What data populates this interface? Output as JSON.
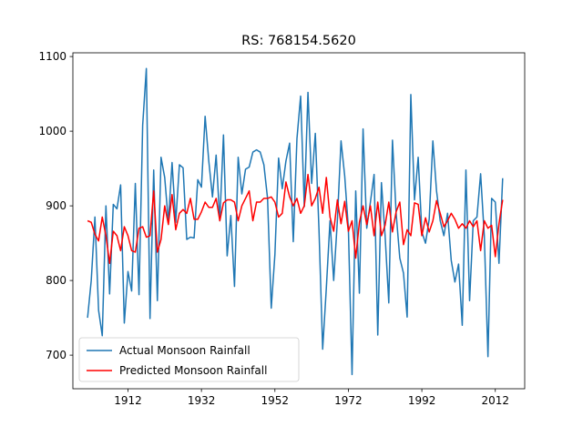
{
  "chart_data": {
    "type": "line",
    "title": "RS: 768154.5620",
    "xlabel": "",
    "ylabel": "",
    "xlim": [
      1897,
      2020
    ],
    "ylim": [
      655,
      1105
    ],
    "x_ticks": [
      1912,
      1932,
      1952,
      1972,
      1992,
      2012
    ],
    "y_ticks": [
      700,
      800,
      900,
      1000,
      1100
    ],
    "grid": false,
    "legend_position": "lower-left",
    "x_start": 1901,
    "series": [
      {
        "name": "Actual Monsoon Rainfall",
        "color": "#1f77b4",
        "values": [
          750,
          800,
          885,
          760,
          726,
          900,
          782,
          902,
          896,
          928,
          743,
          812,
          786,
          930,
          781,
          1008,
          1084,
          749,
          948,
          773,
          965,
          938,
          878,
          958,
          878,
          955,
          951,
          855,
          858,
          857,
          935,
          925,
          1020,
          960,
          912,
          968,
          880,
          995,
          833,
          887,
          792,
          965,
          916,
          949,
          952,
          972,
          975,
          972,
          955,
          910,
          763,
          835,
          964,
          923,
          960,
          984,
          852,
          990,
          1047,
          899,
          1052,
          930,
          997,
          868,
          708,
          790,
          880,
          800,
          880,
          987,
          940,
          870,
          674,
          920,
          783,
          1003,
          870,
          905,
          942,
          727,
          931,
          860,
          770,
          988,
          890,
          830,
          810,
          751,
          1049,
          908,
          965,
          865,
          850,
          882,
          987,
          920,
          880,
          860,
          890,
          827,
          798,
          822,
          740,
          948,
          773,
          880,
          885,
          943,
          860,
          698,
          910,
          905,
          823,
          937
        ]
      },
      {
        "name": "Predicted Monsoon Rainfall",
        "color": "#ff0000",
        "values": [
          880,
          878,
          862,
          853,
          885,
          860,
          823,
          866,
          860,
          840,
          872,
          860,
          840,
          838,
          870,
          872,
          858,
          860,
          920,
          838,
          855,
          900,
          875,
          915,
          868,
          890,
          895,
          890,
          910,
          882,
          882,
          892,
          905,
          898,
          898,
          910,
          880,
          904,
          908,
          908,
          905,
          880,
          900,
          910,
          920,
          880,
          905,
          905,
          910,
          910,
          912,
          905,
          885,
          890,
          932,
          912,
          900,
          910,
          890,
          900,
          942,
          900,
          910,
          925,
          890,
          938,
          885,
          866,
          908,
          876,
          906,
          866,
          880,
          830,
          878,
          900,
          875,
          900,
          860,
          905,
          860,
          874,
          905,
          865,
          892,
          905,
          848,
          868,
          860,
          904,
          902,
          860,
          884,
          865,
          880,
          907,
          890,
          872,
          880,
          890,
          882,
          870,
          876,
          870,
          880,
          872,
          880,
          840,
          880,
          870,
          874,
          832,
          876,
          908
        ]
      }
    ]
  }
}
